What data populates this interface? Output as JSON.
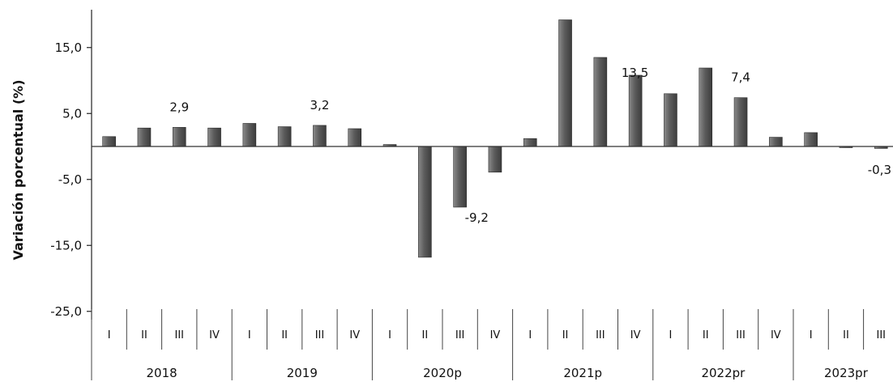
{
  "chart_data": {
    "type": "bar",
    "ylabel": "Variación porcentual (%)",
    "ylim": [
      -25,
      20
    ],
    "yticks": [
      "15,0",
      "5,0",
      "-5,0",
      "-15,0",
      "-25,0"
    ],
    "ytick_values": [
      15,
      5,
      -5,
      -15,
      -25
    ],
    "grid": false,
    "years": [
      {
        "label": "2018",
        "quarters": [
          "I",
          "II",
          "III",
          "IV"
        ]
      },
      {
        "label": "2019",
        "quarters": [
          "I",
          "II",
          "III",
          "IV"
        ]
      },
      {
        "label": "2020p",
        "quarters": [
          "I",
          "II",
          "III",
          "IV"
        ]
      },
      {
        "label": "2021p",
        "quarters": [
          "I",
          "II",
          "III",
          "IV"
        ]
      },
      {
        "label": "2022pr",
        "quarters": [
          "I",
          "II",
          "III",
          "IV"
        ]
      },
      {
        "label": "2023pr",
        "quarters": [
          "I",
          "II",
          "III"
        ]
      }
    ],
    "values": [
      1.5,
      2.8,
      2.9,
      2.8,
      3.5,
      3.0,
      3.2,
      2.7,
      0.3,
      -16.8,
      -9.2,
      -3.9,
      1.2,
      19.2,
      13.5,
      10.8,
      8.0,
      11.9,
      7.4,
      1.4,
      2.1,
      0.0,
      -0.3
    ],
    "bar_color": "#595959",
    "data_labels": [
      {
        "index": 2,
        "text": "2,9"
      },
      {
        "index": 6,
        "text": "3,2"
      },
      {
        "index": 10,
        "text": "-9,2"
      },
      {
        "index": 14,
        "text": "13,5"
      },
      {
        "index": 18,
        "text": "7,4"
      },
      {
        "index": 22,
        "text": "-0,3"
      }
    ]
  }
}
